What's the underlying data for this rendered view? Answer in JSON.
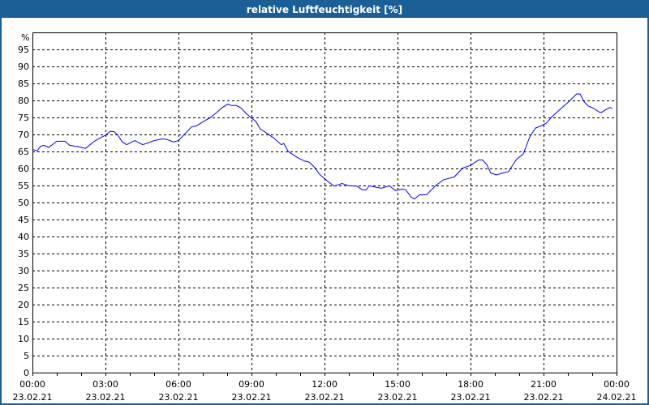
{
  "window": {
    "title": "relative Luftfeuchtigkeit [%]"
  },
  "chart_data": {
    "type": "line",
    "title": "relative Luftfeuchtigkeit [%]",
    "ylabel": "%",
    "xlabel": "",
    "ylim": [
      0,
      100
    ],
    "xlim_hours": [
      0,
      24
    ],
    "grid": true,
    "y_ticks": [
      "0",
      "5",
      "10",
      "15",
      "20",
      "25",
      "30",
      "35",
      "40",
      "45",
      "50",
      "55",
      "60",
      "65",
      "70",
      "75",
      "80",
      "85",
      "90",
      "95"
    ],
    "x_ticks": [
      {
        "time": "00:00",
        "date": "23.02.21"
      },
      {
        "time": "03:00",
        "date": "23.02.21"
      },
      {
        "time": "06:00",
        "date": "23.02.21"
      },
      {
        "time": "09:00",
        "date": "23.02.21"
      },
      {
        "time": "12:00",
        "date": "23.02.21"
      },
      {
        "time": "15:00",
        "date": "23.02.21"
      },
      {
        "time": "18:00",
        "date": "23.02.21"
      },
      {
        "time": "21:00",
        "date": "23.02.21"
      },
      {
        "time": "00:00",
        "date": "24.02.21"
      }
    ],
    "line_color": "#0000ff",
    "series": [
      {
        "name": "relative Luftfeuchtigkeit",
        "x_hours": [
          0,
          0.2,
          0.33,
          0.47,
          0.67,
          1.0,
          1.33,
          1.53,
          1.89,
          2.18,
          2.56,
          3.0,
          3.2,
          3.36,
          3.51,
          3.69,
          3.87,
          4.2,
          4.53,
          5.0,
          5.33,
          5.53,
          5.8,
          6.0,
          6.53,
          6.73,
          7.11,
          7.28,
          7.56,
          7.78,
          8.02,
          8.18,
          8.38,
          8.56,
          8.78,
          9.0,
          9.18,
          9.36,
          9.56,
          9.89,
          10.22,
          10.33,
          10.51,
          10.89,
          11.18,
          11.36,
          11.56,
          11.78,
          12.0,
          12.39,
          12.72,
          13.0,
          13.33,
          13.56,
          13.72,
          13.83,
          14.33,
          14.67,
          14.91,
          15.17,
          15.33,
          15.56,
          15.7,
          15.89,
          16.2,
          16.56,
          16.89,
          17.11,
          17.33,
          17.67,
          18.0,
          18.33,
          18.5,
          18.67,
          18.83,
          19.06,
          19.33,
          19.56,
          19.89,
          20.17,
          20.44,
          20.67,
          20.89,
          21.11,
          21.33,
          21.67,
          22.0,
          22.36,
          22.5,
          22.67,
          22.83,
          23.11,
          23.28,
          23.39,
          23.56,
          23.72,
          23.83
        ],
        "values": [
          65.6,
          65.2,
          66.5,
          66.8,
          66.2,
          68.0,
          68.0,
          66.8,
          66.4,
          65.9,
          68.1,
          69.8,
          70.9,
          70.8,
          69.8,
          67.8,
          67.0,
          68.2,
          67.0,
          68.2,
          68.7,
          68.5,
          67.8,
          68.2,
          72.2,
          72.5,
          74.2,
          74.8,
          76.4,
          77.8,
          78.9,
          78.5,
          78.5,
          77.8,
          76.2,
          74.8,
          73.8,
          71.6,
          70.7,
          69.1,
          67.0,
          67.3,
          65.0,
          63.2,
          62.2,
          61.9,
          60.6,
          58.4,
          57.0,
          54.8,
          55.6,
          54.9,
          54.8,
          53.7,
          53.7,
          54.9,
          54.2,
          54.9,
          53.5,
          53.9,
          53.8,
          51.6,
          51.0,
          52.2,
          52.3,
          54.9,
          56.7,
          57.1,
          57.5,
          60.1,
          60.9,
          62.5,
          62.5,
          61.1,
          58.7,
          58.1,
          58.7,
          59.1,
          62.7,
          64.3,
          69.4,
          71.9,
          72.5,
          73.3,
          75.1,
          77.3,
          79.4,
          81.9,
          81.9,
          79.6,
          78.4,
          77.5,
          76.6,
          76.5,
          77.3,
          77.9,
          77.7
        ]
      }
    ]
  }
}
